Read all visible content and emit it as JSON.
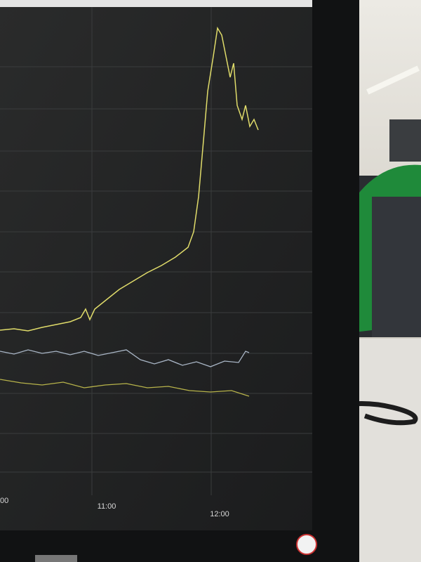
{
  "screen": {
    "x_labels": [
      "00",
      "11:00",
      "12:00"
    ]
  }
}
